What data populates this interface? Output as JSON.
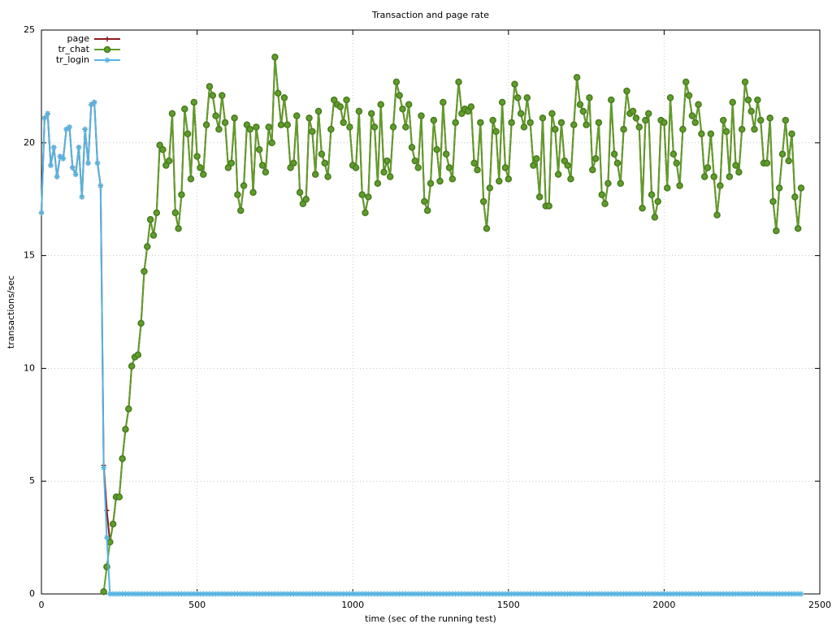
{
  "chart_data": {
    "type": "line",
    "title": "Transaction and page rate",
    "x_label": "time (sec of the running test)",
    "y_label": "transactions/sec",
    "xlim": [
      0,
      2500
    ],
    "xticks": [
      0,
      500,
      1000,
      1500,
      2000,
      2500
    ],
    "ylim": [
      0,
      25
    ],
    "yticks": [
      0,
      5,
      10,
      15,
      20,
      25
    ],
    "grid": true,
    "legend": "top-left",
    "x": [
      0,
      10,
      20,
      30,
      40,
      50,
      60,
      70,
      80,
      90,
      100,
      110,
      120,
      130,
      140,
      150,
      160,
      170,
      180,
      190,
      200,
      210,
      220,
      230,
      240,
      250,
      260,
      270,
      280,
      290,
      300,
      310,
      320,
      330,
      340,
      350,
      360,
      370,
      380,
      390,
      400,
      410,
      420,
      430,
      440,
      450,
      460,
      470,
      480,
      490,
      500,
      510,
      520,
      530,
      540,
      550,
      560,
      570,
      580,
      590,
      600,
      610,
      620,
      630,
      640,
      650,
      660,
      670,
      680,
      690,
      700,
      710,
      720,
      730,
      740,
      750,
      760,
      770,
      780,
      790,
      800,
      810,
      820,
      830,
      840,
      850,
      860,
      870,
      880,
      890,
      900,
      910,
      920,
      930,
      940,
      950,
      960,
      970,
      980,
      990,
      1000,
      1010,
      1020,
      1030,
      1040,
      1050,
      1060,
      1070,
      1080,
      1090,
      1100,
      1110,
      1120,
      1130,
      1140,
      1150,
      1160,
      1170,
      1180,
      1190,
      1200,
      1210,
      1220,
      1230,
      1240,
      1250,
      1260,
      1270,
      1280,
      1290,
      1300,
      1310,
      1320,
      1330,
      1340,
      1350,
      1360,
      1370,
      1380,
      1390,
      1400,
      1410,
      1420,
      1430,
      1440,
      1450,
      1460,
      1470,
      1480,
      1490,
      1500,
      1510,
      1520,
      1530,
      1540,
      1550,
      1560,
      1570,
      1580,
      1590,
      1600,
      1610,
      1620,
      1630,
      1640,
      1650,
      1660,
      1670,
      1680,
      1690,
      1700,
      1710,
      1720,
      1730,
      1740,
      1750,
      1760,
      1770,
      1780,
      1790,
      1800,
      1810,
      1820,
      1830,
      1840,
      1850,
      1860,
      1870,
      1880,
      1890,
      1900,
      1910,
      1920,
      1930,
      1940,
      1950,
      1960,
      1970,
      1980,
      1990,
      2000,
      2010,
      2020,
      2030,
      2040,
      2050,
      2060,
      2070,
      2080,
      2090,
      2100,
      2110,
      2120,
      2130,
      2140,
      2150,
      2160,
      2170,
      2180,
      2190,
      2200,
      2210,
      2220,
      2230,
      2240,
      2250,
      2260,
      2270,
      2280,
      2290,
      2300,
      2310,
      2320,
      2330,
      2340,
      2350,
      2360,
      2370,
      2380,
      2390,
      2400,
      2410,
      2420,
      2430,
      2440
    ],
    "series": [
      {
        "name": "page",
        "color": "#8b1a1a",
        "marker": "plus",
        "values": [
          16.9,
          21.1,
          21.3,
          19.0,
          19.8,
          18.5,
          19.4,
          19.3,
          20.6,
          20.7,
          18.9,
          18.6,
          19.8,
          17.6,
          20.6,
          19.1,
          21.7,
          21.8,
          19.1,
          18.1,
          5.7,
          3.7,
          2.3,
          3.1,
          4.3,
          4.3,
          6.0,
          7.3,
          8.2,
          10.1,
          10.5,
          10.6,
          12.0,
          14.3,
          15.4,
          16.6,
          15.9,
          16.9,
          19.9,
          19.7,
          19.0,
          19.2,
          21.3,
          16.9,
          16.2,
          17.7,
          21.5,
          20.4,
          18.4,
          21.8,
          19.4,
          18.9,
          18.6,
          20.8,
          22.5,
          22.1,
          21.2,
          20.6,
          22.1,
          20.9,
          18.9,
          19.1,
          21.1,
          17.7,
          17.0,
          18.1,
          20.8,
          20.6,
          17.8,
          20.7,
          19.7,
          19.0,
          18.7,
          20.7,
          20.0,
          23.8,
          22.2,
          20.8,
          22.0,
          20.8,
          18.9,
          19.1,
          21.2,
          17.8,
          17.3,
          17.5,
          21.1,
          20.5,
          18.6,
          21.4,
          19.5,
          19.1,
          18.5,
          20.6,
          21.9,
          21.7,
          21.6,
          20.9,
          21.9,
          20.7,
          19.0,
          18.9,
          21.4,
          17.7,
          16.9,
          17.6,
          21.3,
          20.7,
          18.2,
          21.7,
          18.7,
          19.2,
          18.5,
          20.7,
          22.7,
          22.1,
          21.5,
          20.7,
          21.7,
          19.8,
          19.2,
          18.9,
          21.2,
          17.4,
          17.0,
          18.2,
          21.0,
          19.7,
          18.3,
          21.8,
          19.5,
          18.9,
          18.4,
          20.9,
          22.7,
          21.3,
          21.5,
          21.4,
          21.6,
          19.1,
          18.8,
          20.9,
          17.4,
          16.2,
          18.0,
          21.0,
          20.5,
          18.3,
          21.8,
          18.9,
          18.4,
          20.9,
          22.6,
          22.0,
          21.3,
          20.7,
          22.0,
          20.9,
          19.0,
          19.3,
          17.6,
          21.1,
          17.2,
          17.2,
          21.3,
          20.6,
          18.6,
          20.9,
          19.2,
          19.0,
          18.4,
          20.8,
          22.9,
          21.7,
          21.4,
          20.8,
          22.0,
          18.8,
          19.3,
          20.9,
          17.7,
          17.3,
          18.2,
          21.9,
          19.5,
          19.1,
          18.2,
          20.6,
          22.3,
          21.3,
          21.4,
          21.1,
          20.7,
          17.1,
          21.0,
          21.3,
          17.7,
          16.7,
          17.4,
          21.0,
          20.9,
          18.0,
          22.0,
          19.5,
          19.1,
          18.1,
          20.6,
          22.7,
          22.1,
          21.2,
          20.9,
          21.7,
          20.4,
          18.5,
          18.9,
          20.4,
          18.5,
          16.8,
          18.1,
          21.0,
          20.5,
          18.5,
          21.8,
          19.0,
          18.7,
          20.6,
          22.7,
          21.9,
          21.4,
          20.6,
          21.9,
          21.0,
          19.1,
          19.1,
          21.1,
          17.4,
          16.1,
          18.0,
          19.5,
          21.0,
          19.2,
          20.4,
          17.6,
          16.2,
          18.0
        ]
      },
      {
        "name": "tr_chat",
        "color": "#5e9e2a",
        "marker": "circle",
        "values": [
          null,
          null,
          null,
          null,
          null,
          null,
          null,
          null,
          null,
          null,
          null,
          null,
          null,
          null,
          null,
          null,
          null,
          null,
          null,
          null,
          0.1,
          1.2,
          2.3,
          3.1,
          4.3,
          4.3,
          6.0,
          7.3,
          8.2,
          10.1,
          10.5,
          10.6,
          12.0,
          14.3,
          15.4,
          16.6,
          15.9,
          16.9,
          19.9,
          19.7,
          19.0,
          19.2,
          21.3,
          16.9,
          16.2,
          17.7,
          21.5,
          20.4,
          18.4,
          21.8,
          19.4,
          18.9,
          18.6,
          20.8,
          22.5,
          22.1,
          21.2,
          20.6,
          22.1,
          20.9,
          18.9,
          19.1,
          21.1,
          17.7,
          17.0,
          18.1,
          20.8,
          20.6,
          17.8,
          20.7,
          19.7,
          19.0,
          18.7,
          20.7,
          20.0,
          23.8,
          22.2,
          20.8,
          22.0,
          20.8,
          18.9,
          19.1,
          21.2,
          17.8,
          17.3,
          17.5,
          21.1,
          20.5,
          18.6,
          21.4,
          19.5,
          19.1,
          18.5,
          20.6,
          21.9,
          21.7,
          21.6,
          20.9,
          21.9,
          20.7,
          19.0,
          18.9,
          21.4,
          17.7,
          16.9,
          17.6,
          21.3,
          20.7,
          18.2,
          21.7,
          18.7,
          19.2,
          18.5,
          20.7,
          22.7,
          22.1,
          21.5,
          20.7,
          21.7,
          19.8,
          19.2,
          18.9,
          21.2,
          17.4,
          17.0,
          18.2,
          21.0,
          19.7,
          18.3,
          21.8,
          19.5,
          18.9,
          18.4,
          20.9,
          22.7,
          21.3,
          21.5,
          21.4,
          21.6,
          19.1,
          18.8,
          20.9,
          17.4,
          16.2,
          18.0,
          21.0,
          20.5,
          18.3,
          21.8,
          18.9,
          18.4,
          20.9,
          22.6,
          22.0,
          21.3,
          20.7,
          22.0,
          20.9,
          19.0,
          19.3,
          17.6,
          21.1,
          17.2,
          17.2,
          21.3,
          20.6,
          18.6,
          20.9,
          19.2,
          19.0,
          18.4,
          20.8,
          22.9,
          21.7,
          21.4,
          20.8,
          22.0,
          18.8,
          19.3,
          20.9,
          17.7,
          17.3,
          18.2,
          21.9,
          19.5,
          19.1,
          18.2,
          20.6,
          22.3,
          21.3,
          21.4,
          21.1,
          20.7,
          17.1,
          21.0,
          21.3,
          17.7,
          16.7,
          17.4,
          21.0,
          20.9,
          18.0,
          22.0,
          19.5,
          19.1,
          18.1,
          20.6,
          22.7,
          22.1,
          21.2,
          20.9,
          21.7,
          20.4,
          18.5,
          18.9,
          20.4,
          18.5,
          16.8,
          18.1,
          21.0,
          20.5,
          18.5,
          21.8,
          19.0,
          18.7,
          20.6,
          22.7,
          21.9,
          21.4,
          20.6,
          21.9,
          21.0,
          19.1,
          19.1,
          21.1,
          17.4,
          16.1,
          18.0,
          19.5,
          21.0,
          19.2,
          20.4,
          17.6,
          16.2,
          18.0
        ]
      },
      {
        "name": "tr_login",
        "color": "#56b4e0",
        "marker": "star",
        "values": [
          16.9,
          21.1,
          21.3,
          19.0,
          19.8,
          18.5,
          19.4,
          19.3,
          20.6,
          20.7,
          18.9,
          18.6,
          19.8,
          17.6,
          20.6,
          19.1,
          21.7,
          21.8,
          19.1,
          18.1,
          5.6,
          2.5,
          0,
          0,
          0,
          0,
          0,
          0,
          0,
          0,
          0,
          0,
          0,
          0,
          0,
          0,
          0,
          0,
          0,
          0,
          0,
          0,
          0,
          0,
          0,
          0,
          0,
          0,
          0,
          0,
          0,
          0,
          0,
          0,
          0,
          0,
          0,
          0,
          0,
          0,
          0,
          0,
          0,
          0,
          0,
          0,
          0,
          0,
          0,
          0,
          0,
          0,
          0,
          0,
          0,
          0,
          0,
          0,
          0,
          0,
          0,
          0,
          0,
          0,
          0,
          0,
          0,
          0,
          0,
          0,
          0,
          0,
          0,
          0,
          0,
          0,
          0,
          0,
          0,
          0,
          0,
          0,
          0,
          0,
          0,
          0,
          0,
          0,
          0,
          0,
          0,
          0,
          0,
          0,
          0,
          0,
          0,
          0,
          0,
          0,
          0,
          0,
          0,
          0,
          0,
          0,
          0,
          0,
          0,
          0,
          0,
          0,
          0,
          0,
          0,
          0,
          0,
          0,
          0,
          0,
          0,
          0,
          0,
          0,
          0,
          0,
          0,
          0,
          0,
          0,
          0,
          0,
          0,
          0,
          0,
          0,
          0,
          0,
          0,
          0,
          0,
          0,
          0,
          0,
          0,
          0,
          0,
          0,
          0,
          0,
          0,
          0,
          0,
          0,
          0,
          0,
          0,
          0,
          0,
          0,
          0,
          0,
          0,
          0,
          0,
          0,
          0,
          0,
          0,
          0,
          0,
          0,
          0,
          0,
          0,
          0,
          0,
          0,
          0,
          0,
          0,
          0,
          0,
          0,
          0,
          0,
          0,
          0,
          0,
          0,
          0,
          0,
          0,
          0,
          0,
          0,
          0,
          0,
          0,
          0,
          0,
          0,
          0,
          0,
          0,
          0,
          0,
          0,
          0,
          0,
          0,
          0,
          0,
          0,
          0,
          0,
          0,
          0,
          0,
          0,
          0,
          0,
          0,
          0,
          0
        ]
      }
    ]
  }
}
